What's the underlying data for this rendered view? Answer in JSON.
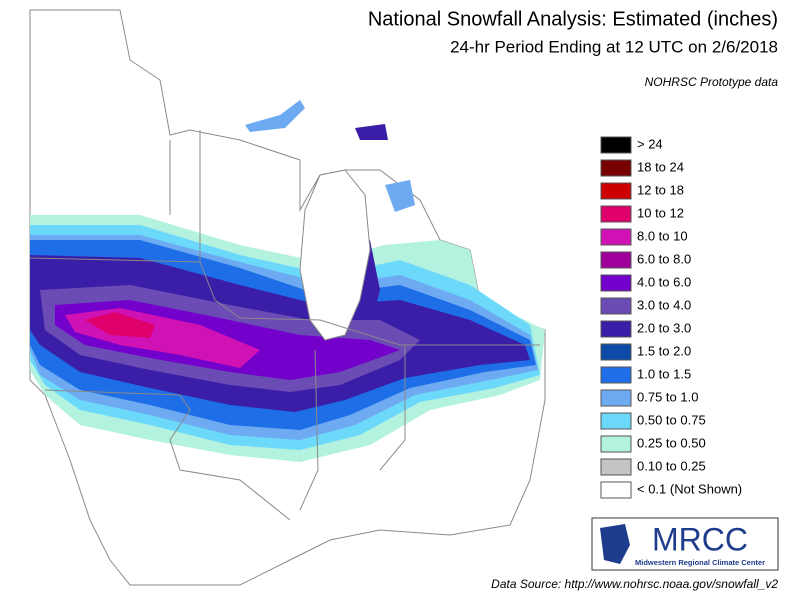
{
  "header": {
    "title": "National Snowfall Analysis: Estimated (inches)",
    "subtitle": "24-hr Period Ending at 12 UTC on 2/6/2018",
    "note": "NOHRSC Prototype data"
  },
  "legend": {
    "items": [
      {
        "label": "> 24",
        "color": "#000000"
      },
      {
        "label": "18 to 24",
        "color": "#780000"
      },
      {
        "label": "12 to 18",
        "color": "#cc0000"
      },
      {
        "label": "10 to 12",
        "color": "#e0006c"
      },
      {
        "label": "8.0 to 10",
        "color": "#d012b4"
      },
      {
        "label": "6.0 to 8.0",
        "color": "#a0009c"
      },
      {
        "label": "4.0 to 6.0",
        "color": "#7400cc"
      },
      {
        "label": "3.0 to 4.0",
        "color": "#6a4cb4"
      },
      {
        "label": "2.0 to 3.0",
        "color": "#3a1ea8"
      },
      {
        "label": "1.5 to 2.0",
        "color": "#0c4ca8"
      },
      {
        "label": "1.0 to 1.5",
        "color": "#1e6ee8"
      },
      {
        "label": "0.75 to 1.0",
        "color": "#6eaaf2"
      },
      {
        "label": "0.50 to 0.75",
        "color": "#6cd8fa"
      },
      {
        "label": "0.25 to 0.50",
        "color": "#b4f2e0"
      },
      {
        "label": "0.10 to 0.25",
        "color": "#c4c4c4"
      },
      {
        "label": "< 0.1 (Not Shown)",
        "color": "#ffffff"
      }
    ]
  },
  "logo": {
    "name": "MRCC",
    "subtitle": "Midwestern Regional Climate Center"
  },
  "footer": {
    "source": "Data Source: http://www.nohrsc.noaa.gov/snowfall_v2"
  }
}
